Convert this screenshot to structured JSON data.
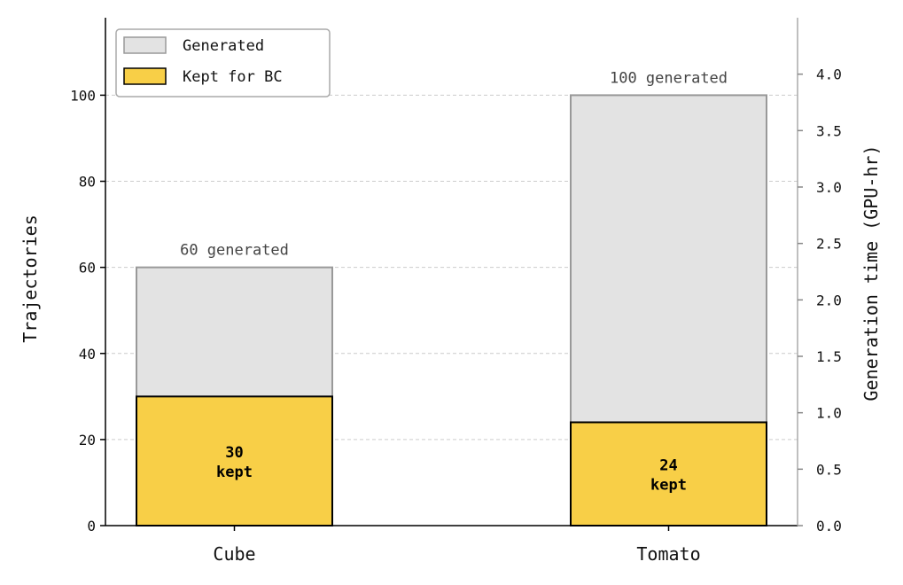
{
  "chart_data": {
    "type": "bar",
    "stacked": true,
    "categories": [
      "Cube",
      "Tomato"
    ],
    "series": [
      {
        "name": "Generated",
        "values": [
          60,
          100
        ],
        "color": "#e3e3e3",
        "edge": "#999999"
      },
      {
        "name": "Kept for BC",
        "values": [
          30,
          24
        ],
        "color": "#f8cf47",
        "edge": "#000000"
      }
    ],
    "generated_labels": [
      "60 generated",
      "100 generated"
    ],
    "kept_labels": [
      [
        "30",
        "kept"
      ],
      [
        "24",
        "kept"
      ]
    ],
    "ylabel": "Trajectories",
    "ylim": [
      0,
      118
    ],
    "yticks": [
      "0",
      "20",
      "40",
      "60",
      "80",
      "100"
    ],
    "y2label": "Generation time (GPU-hr)",
    "y2lim": [
      0,
      4.5
    ],
    "y2ticks": [
      "0.0",
      "0.5",
      "1.0",
      "1.5",
      "2.0",
      "2.5",
      "3.0",
      "3.5",
      "4.0"
    ],
    "grid": true,
    "legend": "top-left"
  }
}
